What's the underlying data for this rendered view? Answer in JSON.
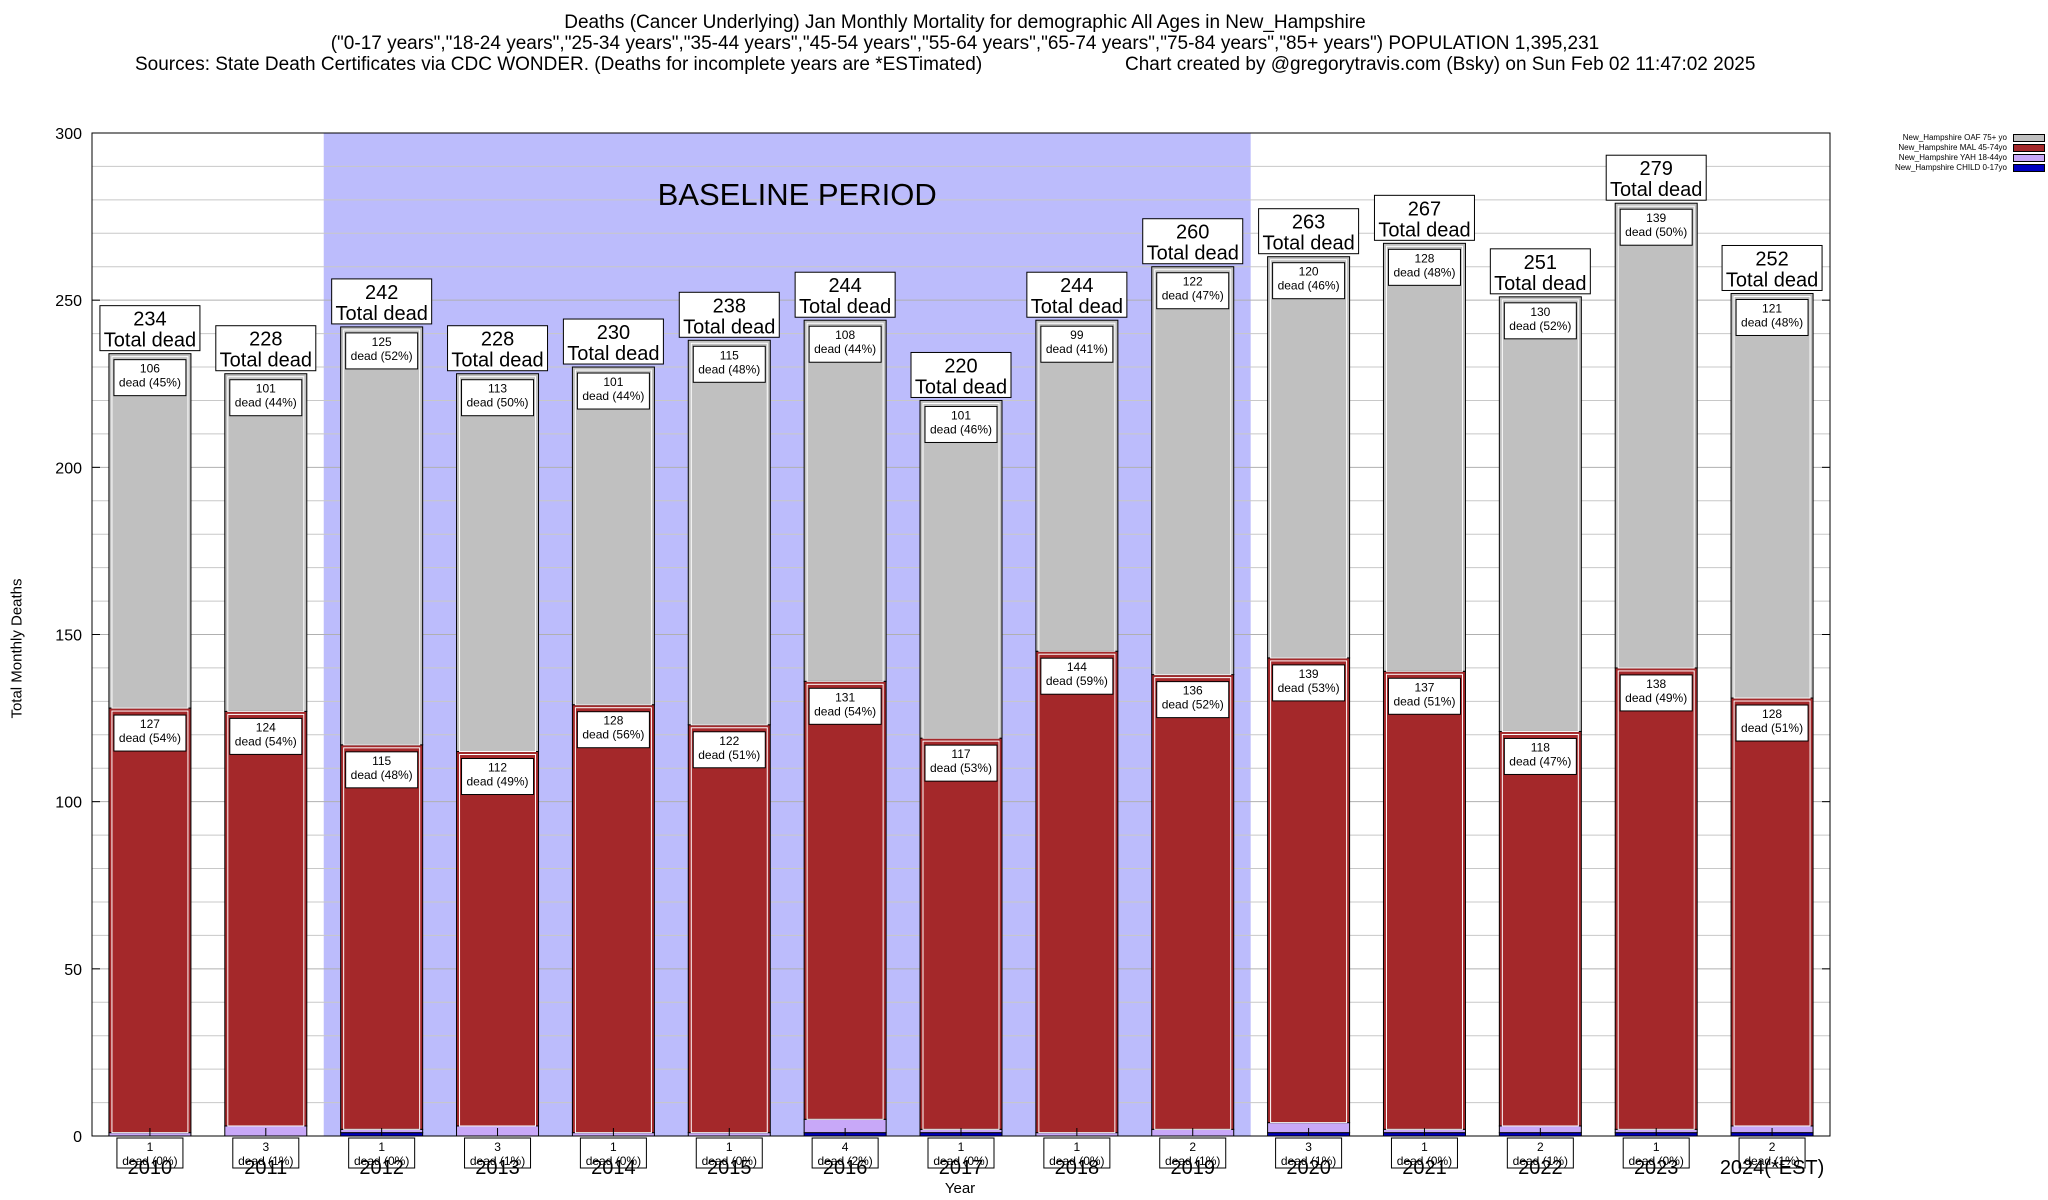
{
  "title": {
    "line1": "Deaths (Cancer Underlying) Jan Monthly Mortality for demographic All Ages in New_Hampshire",
    "line2": "(\"0-17 years\",\"18-24 years\",\"25-34 years\",\"35-44 years\",\"45-54 years\",\"55-64 years\",\"65-74 years\",\"75-84 years\",\"85+ years\") POPULATION 1,395,231",
    "line3_left": "Sources: State Death Certificates via CDC WONDER. (Deaths for incomplete years are *ESTimated)",
    "line3_right": "Chart created by @gregorytravis.com (Bsky) on Sun Feb 02 11:47:02 2025"
  },
  "chart_data": {
    "type": "bar",
    "stacked": true,
    "categories": [
      "2010",
      "2011",
      "2012",
      "2013",
      "2014",
      "2015",
      "2016",
      "2017",
      "2018",
      "2019",
      "2020",
      "2021",
      "2022",
      "2023",
      "2024(*EST)"
    ],
    "series": [
      {
        "name": "New_Hampshire CHILD 0-17yo",
        "color": "#0000c0",
        "values": [
          0,
          0,
          1,
          0,
          0,
          0,
          1,
          1,
          0,
          0,
          1,
          1,
          1,
          1,
          1
        ]
      },
      {
        "name": "New_Hampshire YAH 18-44yo",
        "color": "#c8a8f8",
        "values": [
          1,
          3,
          1,
          3,
          1,
          1,
          4,
          1,
          1,
          2,
          3,
          1,
          2,
          1,
          2
        ]
      },
      {
        "name": "New_Hampshire MAL 45-74yo",
        "color": "#a4282a",
        "values": [
          127,
          124,
          115,
          112,
          128,
          122,
          131,
          117,
          144,
          136,
          139,
          137,
          118,
          138,
          128
        ]
      },
      {
        "name": "New_Hampshire OAF 75+ yo",
        "color": "#c0c0c0",
        "values": [
          106,
          101,
          125,
          113,
          101,
          115,
          108,
          101,
          99,
          122,
          120,
          128,
          130,
          139,
          121
        ]
      }
    ],
    "bar_labels": {
      "yah": [
        "1\ndead (0%)",
        "3\ndead (1%)",
        "1\ndead (0%)",
        "3\ndead (1%)",
        "1\ndead (0%)",
        "1\ndead (0%)",
        "4\ndead (2%)",
        "1\ndead (0%)",
        "1\ndead (0%)",
        "2\ndead (1%)",
        "3\ndead (1%)",
        "1\ndead (0%)",
        "2\ndead (1%)",
        "1\ndead (0%)",
        "2\ndead (1%)"
      ],
      "mal": [
        "127\ndead (54%)",
        "124\ndead (54%)",
        "115\ndead (48%)",
        "112\ndead (49%)",
        "128\ndead (56%)",
        "122\ndead (51%)",
        "131\ndead (54%)",
        "117\ndead (53%)",
        "144\ndead (59%)",
        "136\ndead (52%)",
        "139\ndead (53%)",
        "137\ndead (51%)",
        "118\ndead (47%)",
        "138\ndead (49%)",
        "128\ndead (51%)"
      ],
      "oaf": [
        "106\ndead (45%)",
        "101\ndead (44%)",
        "125\ndead (52%)",
        "113\ndead (50%)",
        "101\ndead (44%)",
        "115\ndead (48%)",
        "108\ndead (44%)",
        "101\ndead (46%)",
        "99\ndead (41%)",
        "122\ndead (47%)",
        "120\ndead (46%)",
        "128\ndead (48%)",
        "130\ndead (52%)",
        "139\ndead (50%)",
        "121\ndead (48%)"
      ]
    },
    "totals": [
      234,
      228,
      242,
      228,
      230,
      238,
      244,
      220,
      244,
      260,
      263,
      267,
      251,
      279,
      252
    ],
    "total_suffix": "Total dead",
    "baseline": {
      "label": "BASELINE PERIOD",
      "from": "2012",
      "to": "2019",
      "color": "#bcbcfc"
    },
    "xlabel": "Year",
    "ylabel": "Total Monthly Deaths",
    "ylim": [
      0,
      300
    ],
    "yticks": [
      0,
      50,
      100,
      150,
      200,
      250,
      300
    ],
    "grid": true,
    "legend_position": "top-right"
  }
}
